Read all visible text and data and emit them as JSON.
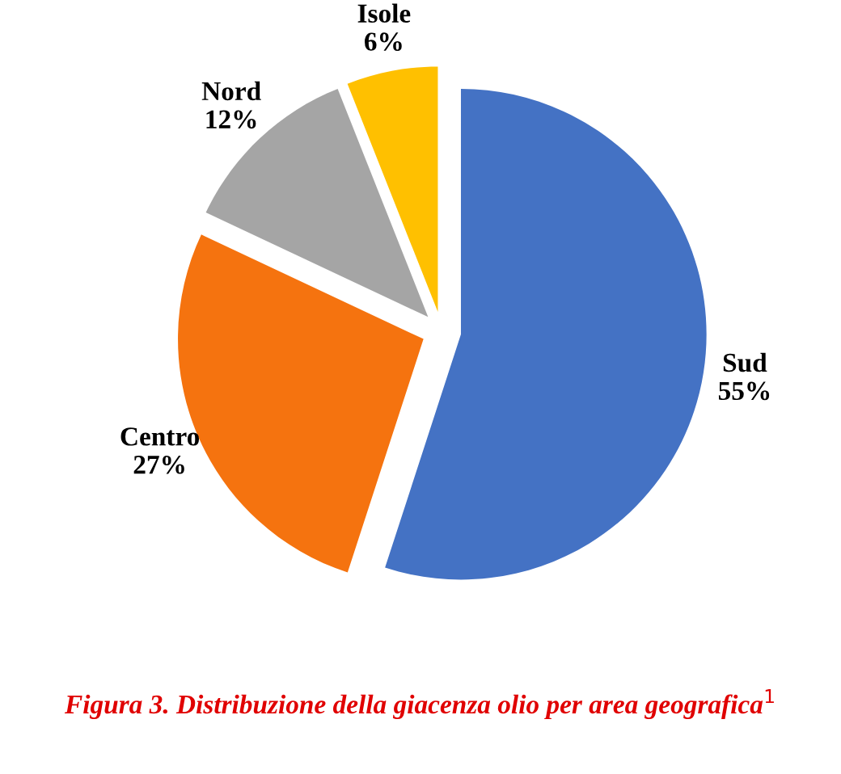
{
  "chart_data": {
    "type": "pie",
    "categories": [
      "Sud",
      "Centro",
      "Nord",
      "Isole"
    ],
    "values": [
      55,
      27,
      12,
      6
    ],
    "value_labels": [
      "55%",
      "27%",
      "12%",
      "6%"
    ],
    "colors": [
      "#4472c4",
      "#f5730f",
      "#a5a5a5",
      "#ffc000"
    ],
    "annotations": [
      "Figura 3. Distribuzione della giacenza olio per area geografica$^{1}$"
    ],
    "legend": false
  }
}
